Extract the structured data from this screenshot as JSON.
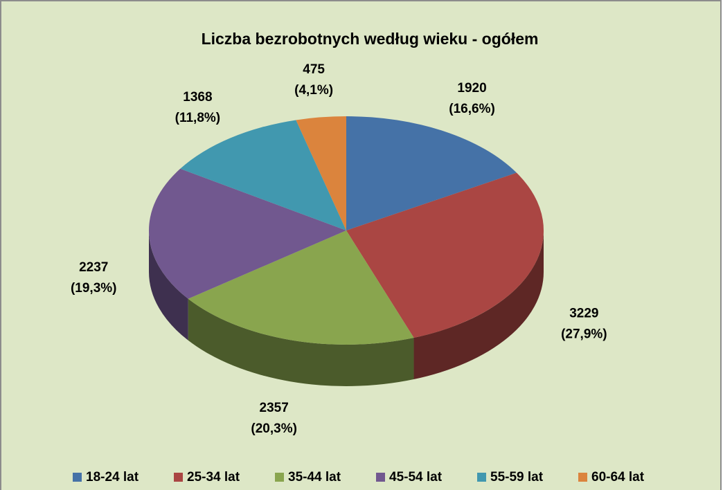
{
  "chart_data": {
    "type": "pie",
    "title": "Liczba bezrobotnych według wieku - ogółem",
    "categories": [
      "18-24 lat",
      "25-34 lat",
      "35-44 lat",
      "45-54 lat",
      "55-59 lat",
      "60-64 lat"
    ],
    "values": [
      1920,
      3229,
      2357,
      2237,
      1368,
      475
    ],
    "percent_labels": [
      "(16,6%)",
      "(27,9%)",
      "(20,3%)",
      "(19,3%)",
      "(11,8%)",
      "(4,1%)"
    ],
    "colors": [
      "#4572a7",
      "#aa4643",
      "#89a54e",
      "#71588f",
      "#4198af",
      "#db843d"
    ],
    "legend": "bottom"
  }
}
